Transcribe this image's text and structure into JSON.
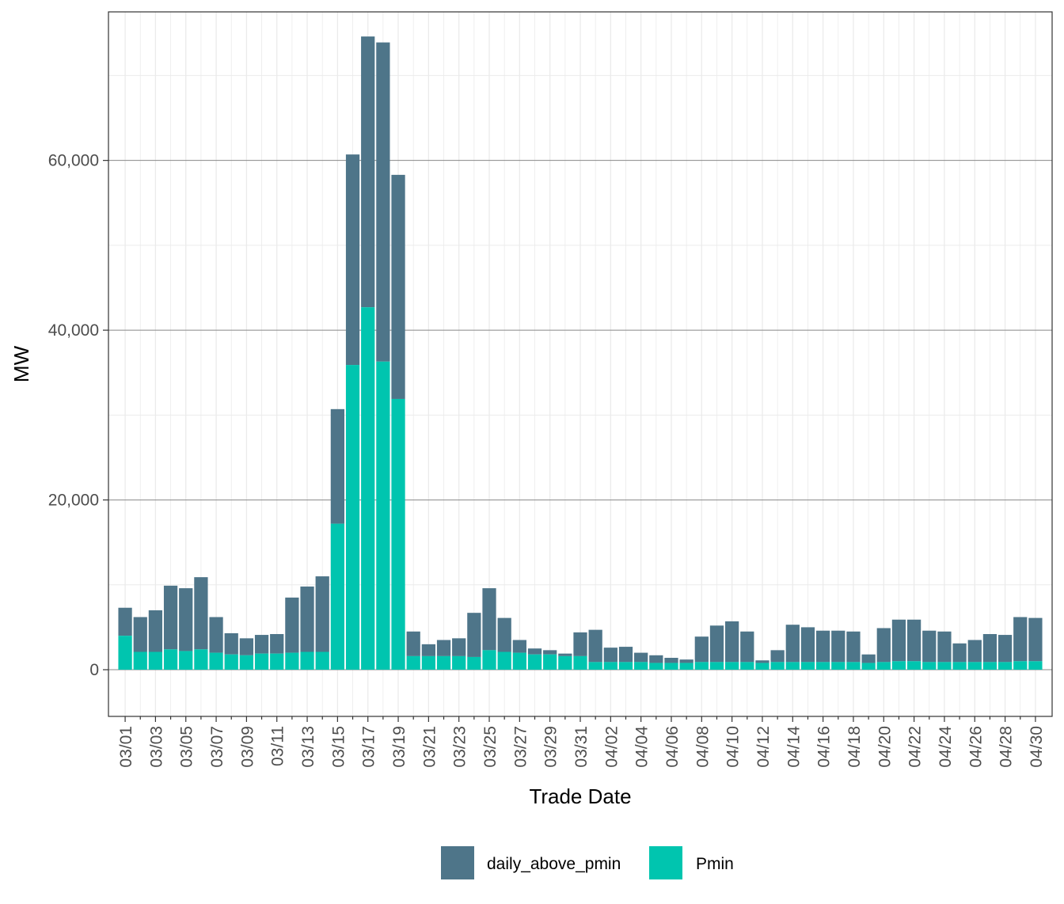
{
  "chart_data": {
    "type": "bar",
    "stacked": true,
    "xlabel": "Trade Date",
    "ylabel": "MW",
    "ylim": [
      -5500,
      77500
    ],
    "yticks": [
      0,
      20000,
      40000,
      60000
    ],
    "ytick_labels": [
      "0",
      "20,000",
      "40,000",
      "60,000"
    ],
    "grid": true,
    "legend_position": "bottom",
    "categories": [
      "03/01",
      "03/02",
      "03/03",
      "03/04",
      "03/05",
      "03/06",
      "03/07",
      "03/08",
      "03/09",
      "03/10",
      "03/11",
      "03/12",
      "03/13",
      "03/14",
      "03/15",
      "03/16",
      "03/17",
      "03/18",
      "03/19",
      "03/20",
      "03/21",
      "03/22",
      "03/23",
      "03/24",
      "03/25",
      "03/26",
      "03/27",
      "03/28",
      "03/29",
      "03/30",
      "03/31",
      "04/01",
      "04/02",
      "04/03",
      "04/04",
      "04/05",
      "04/06",
      "04/07",
      "04/08",
      "04/09",
      "04/10",
      "04/11",
      "04/12",
      "04/13",
      "04/14",
      "04/15",
      "04/16",
      "04/17",
      "04/18",
      "04/19",
      "04/20",
      "04/21",
      "04/22",
      "04/23",
      "04/24",
      "04/25",
      "04/26",
      "04/27",
      "04/28",
      "04/29",
      "04/30"
    ],
    "tick_labels": [
      "03/01",
      "03/03",
      "03/05",
      "03/07",
      "03/09",
      "03/11",
      "03/13",
      "03/15",
      "03/17",
      "03/19",
      "03/21",
      "03/23",
      "03/25",
      "03/27",
      "03/29",
      "03/31",
      "04/02",
      "04/04",
      "04/06",
      "04/08",
      "04/10",
      "04/12",
      "04/14",
      "04/16",
      "04/18",
      "04/20",
      "04/22",
      "04/24",
      "04/26",
      "04/28",
      "04/30"
    ],
    "series": [
      {
        "name": "Pmin",
        "color": "#00C5AF",
        "values": [
          4000,
          2100,
          2100,
          2400,
          2200,
          2400,
          2000,
          1800,
          1700,
          1900,
          1900,
          2000,
          2100,
          2100,
          17200,
          35900,
          42700,
          36300,
          31900,
          1600,
          1600,
          1600,
          1600,
          1500,
          2300,
          2100,
          2000,
          1800,
          1800,
          1600,
          1600,
          900,
          900,
          900,
          900,
          800,
          800,
          800,
          900,
          900,
          900,
          900,
          800,
          900,
          900,
          900,
          900,
          900,
          900,
          800,
          900,
          1000,
          1000,
          900,
          900,
          900,
          900,
          900,
          900,
          1000,
          1000
        ]
      },
      {
        "name": "daily_above_pmin",
        "color": "#4E7589",
        "values": [
          3300,
          4100,
          4900,
          7500,
          7400,
          8500,
          4200,
          2500,
          2000,
          2200,
          2300,
          6500,
          7700,
          8900,
          13500,
          24800,
          31900,
          37600,
          26400,
          2900,
          1400,
          1900,
          2100,
          5200,
          7300,
          4000,
          1500,
          700,
          500,
          300,
          2800,
          3800,
          1700,
          1800,
          1100,
          900,
          600,
          400,
          3000,
          4300,
          4800,
          3600,
          300,
          1400,
          4400,
          4100,
          3700,
          3700,
          3600,
          1000,
          4000,
          4900,
          4900,
          3700,
          3600,
          2200,
          2600,
          3300,
          3200,
          5200,
          5100
        ]
      }
    ]
  }
}
